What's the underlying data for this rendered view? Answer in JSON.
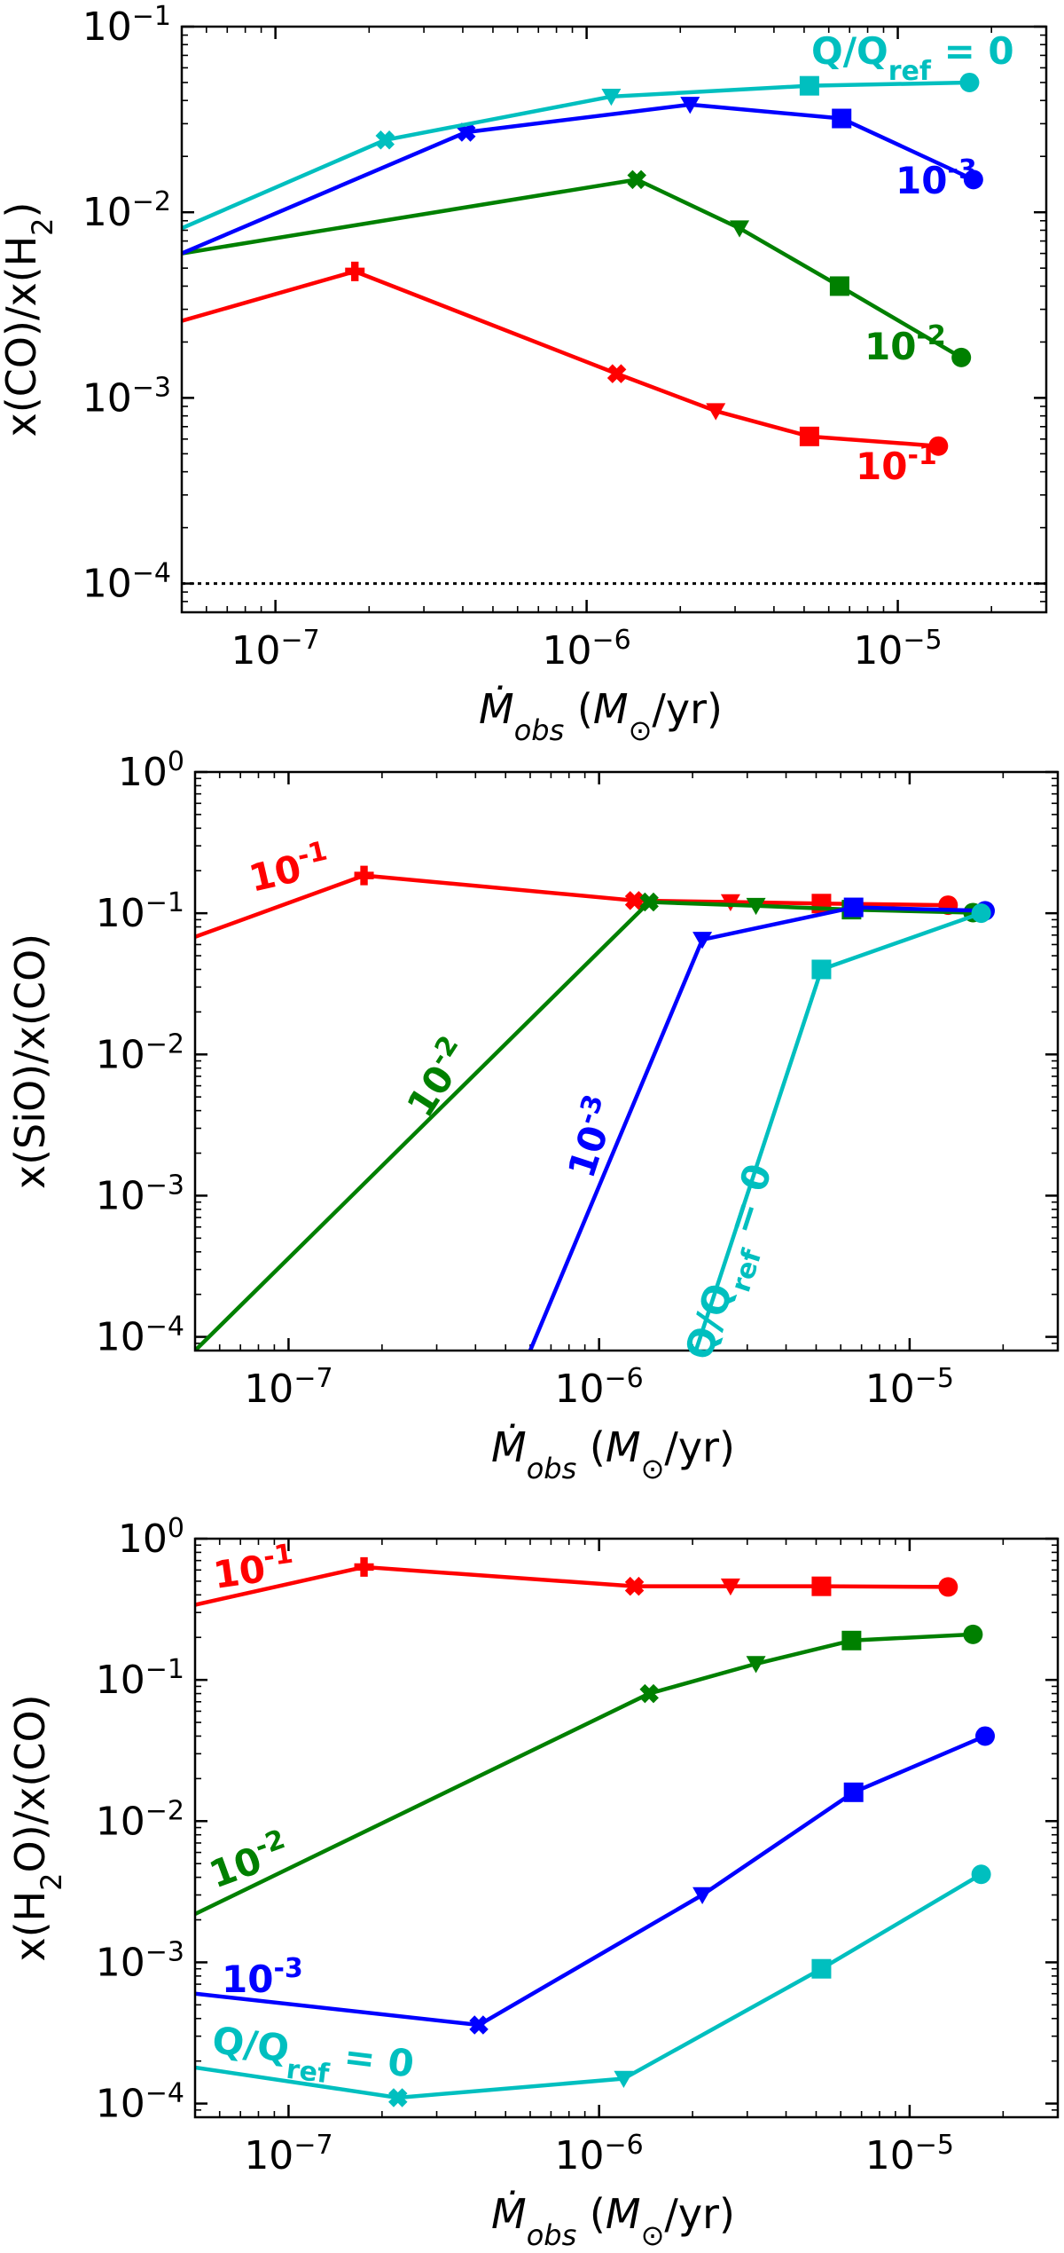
{
  "chart_data": [
    {
      "type": "line",
      "xscale": "log",
      "yscale": "log",
      "xlabel": "Ṁobs (M⊙/yr)",
      "ylabel": "x(CO)/x(H2)",
      "xlim": [
        5e-08,
        3e-05
      ],
      "ylim": [
        7e-05,
        0.1
      ],
      "xticks": [
        {
          "v": 1e-07,
          "e": "-7"
        },
        {
          "v": 1e-06,
          "e": "-6"
        },
        {
          "v": 1e-05,
          "e": "-5"
        }
      ],
      "yticks": [
        {
          "v": 0.0001,
          "e": "-4"
        },
        {
          "v": 0.001,
          "e": "-3"
        },
        {
          "v": 0.01,
          "e": "-2"
        },
        {
          "v": 0.1,
          "e": "-1"
        }
      ],
      "hline": {
        "y": 0.0001,
        "style": "dotted",
        "color": "#000000"
      },
      "series": [
        {
          "name": "10-1",
          "color": "#ff0000",
          "x": [
            5e-08,
            1.8e-07,
            1.25e-06,
            2.6e-06,
            5.2e-06,
            1.35e-05
          ],
          "y": [
            0.0026,
            0.0048,
            0.00135,
            0.00085,
            0.00062,
            0.00055
          ],
          "markers": [
            "none",
            "plus",
            "x",
            "triangle",
            "square",
            "circle"
          ]
        },
        {
          "name": "10-2",
          "color": "#008000",
          "x": [
            5e-08,
            1.45e-06,
            3.1e-06,
            6.5e-06,
            1.6e-05
          ],
          "y": [
            0.006,
            0.015,
            0.0082,
            0.004,
            0.00165
          ],
          "markers": [
            "none",
            "x",
            "triangle",
            "square",
            "circle"
          ]
        },
        {
          "name": "10-3",
          "color": "#0000ff",
          "x": [
            5e-08,
            4.1e-07,
            2.15e-06,
            6.6e-06,
            1.75e-05
          ],
          "y": [
            0.006,
            0.027,
            0.038,
            0.032,
            0.015
          ],
          "markers": [
            "none",
            "x",
            "triangle",
            "square",
            "circle"
          ]
        },
        {
          "name": "Q/Qref = 0",
          "color": "#00bfbf",
          "x": [
            5e-08,
            2.25e-07,
            1.2e-06,
            5.2e-06,
            1.7e-05
          ],
          "y": [
            0.0082,
            0.0245,
            0.042,
            0.048,
            0.05
          ],
          "markers": [
            "none",
            "x",
            "triangle",
            "square",
            "circle"
          ]
        }
      ],
      "annotations": [
        {
          "base": "Q/Q",
          "sub": "ref",
          "tail": " = 0",
          "sup": "",
          "color": "#00bfbf"
        },
        {
          "base": "10",
          "sub": "",
          "tail": "",
          "sup": "-3",
          "color": "#0000ff"
        },
        {
          "base": "10",
          "sub": "",
          "tail": "",
          "sup": "-2",
          "color": "#008000"
        },
        {
          "base": "10",
          "sub": "",
          "tail": "",
          "sup": "-1",
          "color": "#ff0000"
        }
      ]
    },
    {
      "type": "line",
      "xscale": "log",
      "yscale": "log",
      "xlabel": "Ṁobs (M⊙/yr)",
      "ylabel": "x(SiO)/x(CO)",
      "xlim": [
        5e-08,
        3e-05
      ],
      "ylim": [
        8e-05,
        1
      ],
      "xticks": [
        {
          "v": 1e-07,
          "e": "-7"
        },
        {
          "v": 1e-06,
          "e": "-6"
        },
        {
          "v": 1e-05,
          "e": "-5"
        }
      ],
      "yticks": [
        {
          "v": 0.0001,
          "e": "-4"
        },
        {
          "v": 0.001,
          "e": "-3"
        },
        {
          "v": 0.01,
          "e": "-2"
        },
        {
          "v": 0.1,
          "e": "-1"
        },
        {
          "v": 1,
          "e": "0"
        }
      ],
      "series": [
        {
          "name": "10-1",
          "color": "#ff0000",
          "x": [
            5e-08,
            1.75e-07,
            1.3e-06,
            2.65e-06,
            5.2e-06,
            1.33e-05
          ],
          "y": [
            0.068,
            0.185,
            0.123,
            0.12,
            0.117,
            0.114
          ],
          "markers": [
            "none",
            "plus",
            "x",
            "triangle",
            "square",
            "circle"
          ]
        },
        {
          "name": "10-2",
          "color": "#008000",
          "x": [
            5e-08,
            1.45e-06,
            3.2e-06,
            6.5e-06,
            1.6e-05
          ],
          "y": [
            8e-05,
            0.12,
            0.113,
            0.106,
            0.101
          ],
          "markers": [
            "none",
            "x",
            "triangle",
            "square",
            "circle"
          ]
        },
        {
          "name": "10-3",
          "color": "#0000ff",
          "x": [
            6e-07,
            2.15e-06,
            6.6e-06,
            1.75e-05
          ],
          "y": [
            8e-05,
            0.065,
            0.11,
            0.104
          ],
          "markers": [
            "none",
            "triangle",
            "square",
            "circle"
          ]
        },
        {
          "name": "Q/Qref = 0",
          "color": "#00bfbf",
          "x": [
            2.05e-06,
            5.2e-06,
            1.7e-05
          ],
          "y": [
            8e-05,
            0.04,
            0.1
          ],
          "markers": [
            "none",
            "square",
            "circle"
          ]
        }
      ],
      "annotations": [
        {
          "base": "10",
          "sub": "",
          "tail": "",
          "sup": "-1",
          "color": "#ff0000"
        },
        {
          "base": "10",
          "sub": "",
          "tail": "",
          "sup": "-2",
          "color": "#008000"
        },
        {
          "base": "10",
          "sub": "",
          "tail": "",
          "sup": "-3",
          "color": "#0000ff"
        },
        {
          "base": "Q/Q",
          "sub": "ref",
          "tail": " = 0",
          "sup": "",
          "color": "#00bfbf"
        }
      ]
    },
    {
      "type": "line",
      "xscale": "log",
      "yscale": "log",
      "xlabel": "Ṁobs (M⊙/yr)",
      "ylabel": "x(H2O)/x(CO)",
      "xlim": [
        5e-08,
        3e-05
      ],
      "ylim": [
        8e-05,
        1
      ],
      "xticks": [
        {
          "v": 1e-07,
          "e": "-7"
        },
        {
          "v": 1e-06,
          "e": "-6"
        },
        {
          "v": 1e-05,
          "e": "-5"
        }
      ],
      "yticks": [
        {
          "v": 0.0001,
          "e": "-4"
        },
        {
          "v": 0.001,
          "e": "-3"
        },
        {
          "v": 0.01,
          "e": "-2"
        },
        {
          "v": 0.1,
          "e": "-1"
        },
        {
          "v": 1,
          "e": "0"
        }
      ],
      "series": [
        {
          "name": "10-1",
          "color": "#ff0000",
          "x": [
            5e-08,
            1.75e-07,
            1.3e-06,
            2.65e-06,
            5.2e-06,
            1.33e-05
          ],
          "y": [
            0.34,
            0.63,
            0.46,
            0.46,
            0.46,
            0.455
          ],
          "markers": [
            "none",
            "plus",
            "x",
            "triangle",
            "square",
            "circle"
          ]
        },
        {
          "name": "10-2",
          "color": "#008000",
          "x": [
            5e-08,
            1.45e-06,
            3.2e-06,
            6.5e-06,
            1.6e-05
          ],
          "y": [
            0.0022,
            0.08,
            0.13,
            0.19,
            0.21
          ],
          "markers": [
            "none",
            "x",
            "triangle",
            "square",
            "circle"
          ]
        },
        {
          "name": "10-3",
          "color": "#0000ff",
          "x": [
            5e-08,
            4.1e-07,
            2.15e-06,
            6.6e-06,
            1.75e-05
          ],
          "y": [
            0.0006,
            0.00036,
            0.003,
            0.016,
            0.04
          ],
          "markers": [
            "none",
            "x",
            "triangle",
            "square",
            "circle"
          ]
        },
        {
          "name": "Q/Qref = 0",
          "color": "#00bfbf",
          "x": [
            5e-08,
            2.25e-07,
            1.2e-06,
            5.2e-06,
            1.7e-05
          ],
          "y": [
            0.00018,
            0.00011,
            0.00015,
            0.0009,
            0.0042
          ],
          "markers": [
            "none",
            "x",
            "triangle",
            "square",
            "circle"
          ]
        }
      ],
      "annotations": [
        {
          "base": "10",
          "sub": "",
          "tail": "",
          "sup": "-1",
          "color": "#ff0000"
        },
        {
          "base": "10",
          "sub": "",
          "tail": "",
          "sup": "-2",
          "color": "#008000"
        },
        {
          "base": "10",
          "sub": "",
          "tail": "",
          "sup": "-3",
          "color": "#0000ff"
        },
        {
          "base": "Q/Q",
          "sub": "ref",
          "tail": " = 0",
          "sup": "",
          "color": "#00bfbf"
        }
      ]
    }
  ]
}
